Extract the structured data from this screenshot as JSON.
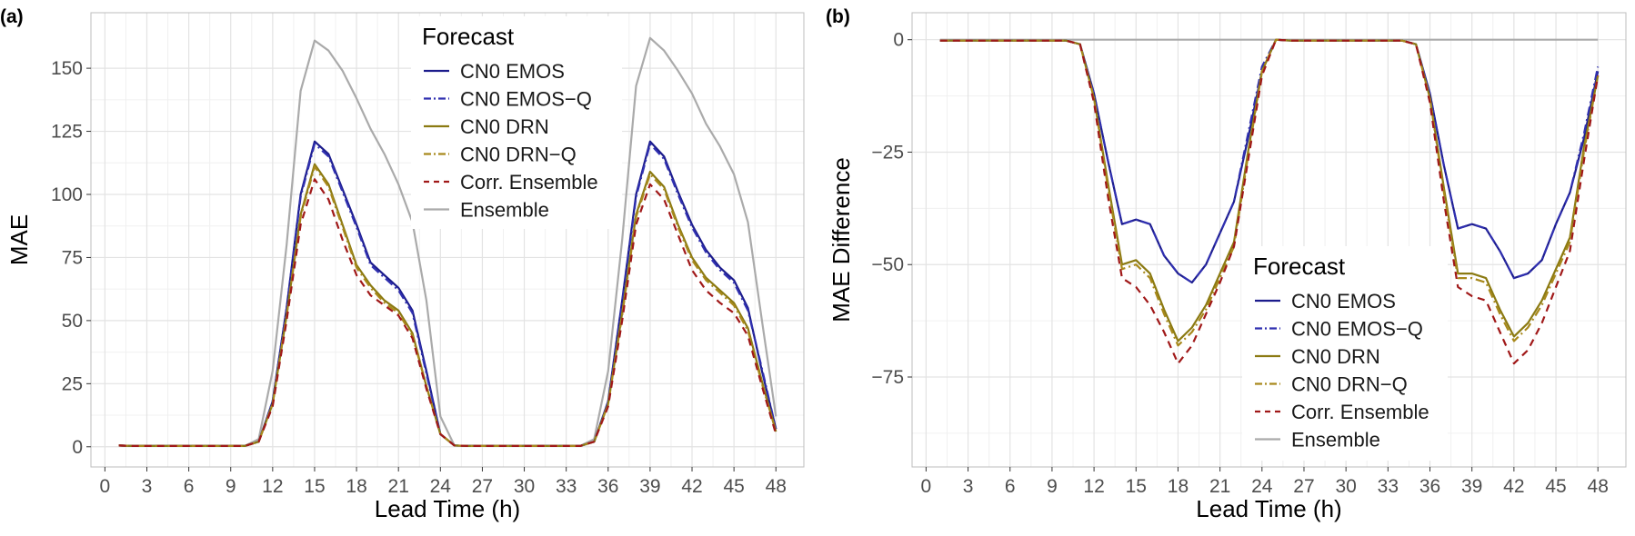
{
  "chart_data": [
    {
      "type": "line",
      "panel_label": "(a)",
      "xlabel": "Lead Time (h)",
      "ylabel": "MAE",
      "xlim": [
        -1,
        50
      ],
      "ylim": [
        -8,
        172
      ],
      "x_ticks": [
        0,
        3,
        6,
        9,
        12,
        15,
        18,
        21,
        24,
        27,
        30,
        33,
        36,
        39,
        42,
        45,
        48
      ],
      "y_ticks": [
        0,
        25,
        50,
        75,
        100,
        125,
        150
      ],
      "grid": true,
      "legend_title": "Forecast",
      "legend_position": "top-center",
      "x": [
        1,
        2,
        3,
        4,
        5,
        6,
        7,
        8,
        9,
        10,
        11,
        12,
        13,
        14,
        15,
        16,
        17,
        18,
        19,
        20,
        21,
        22,
        23,
        24,
        25,
        26,
        27,
        28,
        29,
        30,
        31,
        32,
        33,
        34,
        35,
        36,
        37,
        38,
        39,
        40,
        41,
        42,
        43,
        44,
        45,
        46,
        47,
        48
      ],
      "series": [
        {
          "name": "CN0 EMOS",
          "color": "#1c1c8c",
          "dash": "solid",
          "values": [
            0.5,
            0.3,
            0.3,
            0.3,
            0.3,
            0.3,
            0.3,
            0.3,
            0.3,
            0.3,
            2,
            18,
            55,
            100,
            121,
            116,
            102,
            88,
            73,
            68,
            63,
            54,
            30,
            5,
            0.5,
            0.3,
            0.3,
            0.3,
            0.3,
            0.3,
            0.3,
            0.3,
            0.3,
            0.3,
            2,
            18,
            58,
            100,
            121,
            115,
            101,
            88,
            78,
            71,
            66,
            55,
            30,
            7
          ]
        },
        {
          "name": "CN0 EMOS−Q",
          "color": "#3030b0",
          "dash": "dashdot",
          "values": [
            0.5,
            0.3,
            0.3,
            0.3,
            0.3,
            0.3,
            0.3,
            0.3,
            0.3,
            0.3,
            2,
            18,
            55,
            99,
            120,
            115,
            101,
            87,
            72,
            67,
            62,
            53,
            29,
            5,
            0.5,
            0.3,
            0.3,
            0.3,
            0.3,
            0.3,
            0.3,
            0.3,
            0.3,
            0.3,
            2,
            18,
            57,
            99,
            120,
            114,
            100,
            87,
            77,
            70,
            65,
            54,
            31,
            7
          ]
        },
        {
          "name": "CN0 DRN",
          "color": "#8b7a12",
          "dash": "solid",
          "values": [
            0.5,
            0.3,
            0.3,
            0.3,
            0.3,
            0.3,
            0.3,
            0.3,
            0.3,
            0.3,
            2,
            17,
            52,
            92,
            112,
            104,
            88,
            72,
            64,
            58,
            54,
            45,
            24,
            5,
            0.5,
            0.3,
            0.3,
            0.3,
            0.3,
            0.3,
            0.3,
            0.3,
            0.3,
            0.3,
            2,
            17,
            53,
            92,
            109,
            103,
            88,
            75,
            67,
            62,
            57,
            47,
            26,
            6
          ]
        },
        {
          "name": "CN0 DRN−Q",
          "color": "#a8891c",
          "dash": "dashdot",
          "values": [
            0.5,
            0.3,
            0.3,
            0.3,
            0.3,
            0.3,
            0.3,
            0.3,
            0.3,
            0.3,
            2,
            17,
            52,
            91,
            111,
            103,
            87,
            71,
            63,
            57,
            53,
            44,
            24,
            5,
            0.5,
            0.3,
            0.3,
            0.3,
            0.3,
            0.3,
            0.3,
            0.3,
            0.3,
            0.3,
            2,
            17,
            52,
            91,
            108,
            102,
            87,
            74,
            66,
            61,
            56,
            46,
            25,
            6
          ]
        },
        {
          "name": "Corr. Ensemble",
          "color": "#a01818",
          "dash": "dashed",
          "values": [
            0.5,
            0.3,
            0.3,
            0.3,
            0.3,
            0.3,
            0.3,
            0.3,
            0.3,
            0.3,
            2,
            16,
            50,
            88,
            106,
            98,
            82,
            68,
            60,
            56,
            52,
            43,
            23,
            5,
            0.5,
            0.3,
            0.3,
            0.3,
            0.3,
            0.3,
            0.3,
            0.3,
            0.3,
            0.3,
            2,
            16,
            50,
            88,
            104,
            98,
            84,
            70,
            62,
            57,
            53,
            44,
            24,
            5
          ]
        },
        {
          "name": "Ensemble",
          "color": "#aaaaaa",
          "dash": "solid",
          "values": [
            0.5,
            0.3,
            0.3,
            0.3,
            0.3,
            0.3,
            0.3,
            0.3,
            0.3,
            0.3,
            3,
            30,
            80,
            141,
            161,
            157,
            149,
            138,
            126,
            116,
            104,
            89,
            58,
            12,
            0.5,
            0.3,
            0.3,
            0.3,
            0.3,
            0.3,
            0.3,
            0.3,
            0.3,
            0.3,
            3,
            30,
            82,
            143,
            162,
            157,
            149,
            140,
            128,
            119,
            108,
            89,
            50,
            12
          ]
        }
      ]
    },
    {
      "type": "line",
      "panel_label": "(b)",
      "xlabel": "Lead Time (h)",
      "ylabel": "MAE Difference",
      "xlim": [
        -1,
        50
      ],
      "ylim": [
        -95,
        6
      ],
      "x_ticks": [
        0,
        3,
        6,
        9,
        12,
        15,
        18,
        21,
        24,
        27,
        30,
        33,
        36,
        39,
        42,
        45,
        48
      ],
      "y_ticks": [
        0,
        -25,
        -50,
        -75
      ],
      "grid": true,
      "legend_title": "Forecast",
      "legend_position": "bottom-center",
      "x": [
        1,
        2,
        3,
        4,
        5,
        6,
        7,
        8,
        9,
        10,
        11,
        12,
        13,
        14,
        15,
        16,
        17,
        18,
        19,
        20,
        21,
        22,
        23,
        24,
        25,
        26,
        27,
        28,
        29,
        30,
        31,
        32,
        33,
        34,
        35,
        36,
        37,
        38,
        39,
        40,
        41,
        42,
        43,
        44,
        45,
        46,
        47,
        48
      ],
      "series": [
        {
          "name": "CN0 EMOS",
          "color": "#1c1c8c",
          "dash": "solid",
          "values": [
            -0.2,
            -0.2,
            -0.2,
            -0.2,
            -0.2,
            -0.2,
            -0.2,
            -0.2,
            -0.2,
            -0.2,
            -1,
            -12,
            -27,
            -41,
            -40,
            -41,
            -48,
            -52,
            -54,
            -50,
            -43,
            -36,
            -22,
            -7,
            0,
            -0.2,
            -0.2,
            -0.2,
            -0.2,
            -0.2,
            -0.2,
            -0.2,
            -0.2,
            -0.2,
            -1,
            -12,
            -28,
            -42,
            -41,
            -42,
            -47,
            -53,
            -52,
            -49,
            -41,
            -34,
            -22,
            -7
          ]
        },
        {
          "name": "CN0 EMOS−Q",
          "color": "#3030b0",
          "dash": "dashdot",
          "values": [
            -0.2,
            -0.2,
            -0.2,
            -0.2,
            -0.2,
            -0.2,
            -0.2,
            -0.2,
            -0.2,
            -0.2,
            -1,
            -12,
            -27,
            -41,
            -40,
            -41,
            -48,
            -52,
            -54,
            -50,
            -43,
            -36,
            -21,
            -6,
            0,
            -0.2,
            -0.2,
            -0.2,
            -0.2,
            -0.2,
            -0.2,
            -0.2,
            -0.2,
            -0.2,
            -1,
            -12,
            -28,
            -42,
            -41,
            -42,
            -47,
            -53,
            -52,
            -49,
            -41,
            -34,
            -21,
            -6
          ]
        },
        {
          "name": "CN0 DRN",
          "color": "#8b7a12",
          "dash": "solid",
          "values": [
            -0.2,
            -0.2,
            -0.2,
            -0.2,
            -0.2,
            -0.2,
            -0.2,
            -0.2,
            -0.2,
            -0.2,
            -1,
            -13,
            -32,
            -50,
            -49,
            -52,
            -60,
            -67,
            -64,
            -59,
            -52,
            -45,
            -25,
            -7,
            0,
            -0.2,
            -0.2,
            -0.2,
            -0.2,
            -0.2,
            -0.2,
            -0.2,
            -0.2,
            -0.2,
            -1,
            -13,
            -33,
            -52,
            -52,
            -53,
            -60,
            -66,
            -63,
            -58,
            -51,
            -44,
            -24,
            -8
          ]
        },
        {
          "name": "CN0 DRN−Q",
          "color": "#a8891c",
          "dash": "dashdot",
          "values": [
            -0.2,
            -0.2,
            -0.2,
            -0.2,
            -0.2,
            -0.2,
            -0.2,
            -0.2,
            -0.2,
            -0.2,
            -1,
            -13,
            -33,
            -51,
            -50,
            -53,
            -61,
            -68,
            -65,
            -60,
            -53,
            -46,
            -26,
            -7,
            0,
            -0.2,
            -0.2,
            -0.2,
            -0.2,
            -0.2,
            -0.2,
            -0.2,
            -0.2,
            -0.2,
            -1,
            -13,
            -34,
            -53,
            -53,
            -54,
            -61,
            -67,
            -64,
            -59,
            -52,
            -45,
            -25,
            -8
          ]
        },
        {
          "name": "Corr. Ensemble",
          "color": "#a01818",
          "dash": "dashed",
          "values": [
            -0.2,
            -0.2,
            -0.2,
            -0.2,
            -0.2,
            -0.2,
            -0.2,
            -0.2,
            -0.2,
            -0.2,
            -1,
            -14,
            -35,
            -53,
            -55,
            -59,
            -65,
            -72,
            -68,
            -61,
            -54,
            -46,
            -27,
            -8,
            0,
            -0.2,
            -0.2,
            -0.2,
            -0.2,
            -0.2,
            -0.2,
            -0.2,
            -0.2,
            -0.2,
            -1,
            -14,
            -36,
            -55,
            -57,
            -58,
            -65,
            -72,
            -69,
            -63,
            -55,
            -47,
            -27,
            -8
          ]
        },
        {
          "name": "Ensemble",
          "color": "#aaaaaa",
          "dash": "solid",
          "values": [
            0,
            0,
            0,
            0,
            0,
            0,
            0,
            0,
            0,
            0,
            0,
            0,
            0,
            0,
            0,
            0,
            0,
            0,
            0,
            0,
            0,
            0,
            0,
            0,
            0,
            0,
            0,
            0,
            0,
            0,
            0,
            0,
            0,
            0,
            0,
            0,
            0,
            0,
            0,
            0,
            0,
            0,
            0,
            0,
            0,
            0,
            0,
            0
          ]
        }
      ]
    }
  ]
}
